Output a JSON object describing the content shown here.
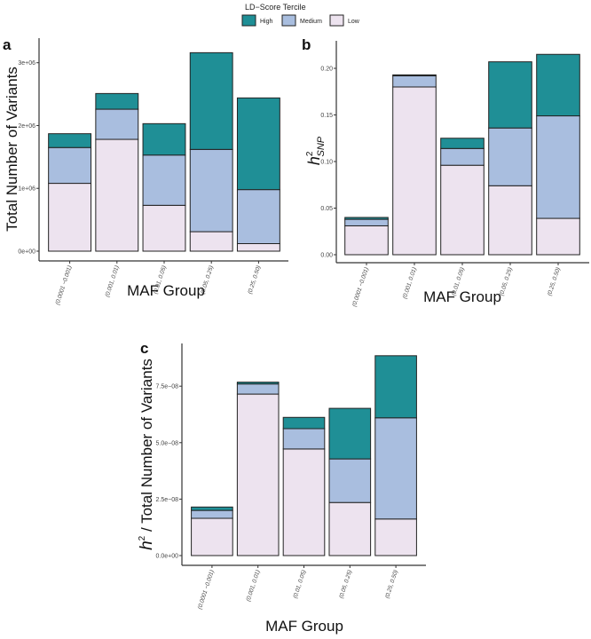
{
  "legend": {
    "title": "LD−Score Tercile",
    "entries": [
      {
        "label": "High",
        "color": "#1f8f96"
      },
      {
        "label": "Medium",
        "color": "#a9bedf"
      },
      {
        "label": "Low",
        "color": "#ede3ef"
      }
    ]
  },
  "chart_data": [
    {
      "panel": "a",
      "type": "bar",
      "stacked": true,
      "title": "",
      "xlabel": "MAF Group",
      "ylabel": "Total Number of Variants",
      "categories": [
        "(0.0001 −0.001)",
        "(0.001, 0.01)",
        "(0.01, 0.05)",
        "(0.05, 0.25)",
        "(0.25, 0.50)"
      ],
      "series": [
        {
          "name": "Low",
          "values": [
            1080000,
            1780000,
            730000,
            310000,
            120000
          ]
        },
        {
          "name": "Medium",
          "values": [
            570000,
            480000,
            800000,
            1310000,
            860000
          ]
        },
        {
          "name": "High",
          "values": [
            220000,
            250000,
            500000,
            1540000,
            1460000
          ]
        }
      ],
      "yticks": [
        0,
        1000000,
        2000000,
        3000000
      ],
      "ytick_labels": [
        "0e+00",
        "1e+06",
        "2e+06",
        "3e+06"
      ],
      "ylim": [
        0,
        3250000
      ]
    },
    {
      "panel": "b",
      "type": "bar",
      "stacked": true,
      "title": "",
      "xlabel": "MAF Group",
      "ylabel": "h2 SNP",
      "ylabel_main": "h",
      "ylabel_sup": "2",
      "ylabel_sub": "SNP",
      "categories": [
        "(0.0001 −0.001)",
        "(0.001, 0.01)",
        "(0.01, 0.05)",
        "(0.05, 0.25)",
        "(0.25, 0.50)"
      ],
      "series": [
        {
          "name": "Low",
          "values": [
            0.031,
            0.18,
            0.096,
            0.074,
            0.039
          ]
        },
        {
          "name": "Medium",
          "values": [
            0.007,
            0.012,
            0.018,
            0.062,
            0.11
          ]
        },
        {
          "name": "High",
          "values": [
            0.002,
            0.001,
            0.011,
            0.071,
            0.066
          ]
        }
      ],
      "yticks": [
        0,
        0.05,
        0.1,
        0.15,
        0.2
      ],
      "ytick_labels": [
        "0.00",
        "0.05",
        "0.10",
        "0.15",
        "0.20"
      ],
      "ylim": [
        0,
        0.22
      ]
    },
    {
      "panel": "c",
      "type": "bar",
      "stacked": true,
      "title": "",
      "xlabel": "MAF Group",
      "ylabel": "h2 / Total Number of Variants",
      "ylabel_main": "h",
      "ylabel_sup": "2",
      "ylabel_rest": " / Total Number of Variants",
      "categories": [
        "(0.0001 −0.001)",
        "(0.001, 0.01)",
        "(0.01, 0.05)",
        "(0.05, 0.25)",
        "(0.25, 0.50)"
      ],
      "series": [
        {
          "name": "Low",
          "values": [
            1.65e-08,
            7.15e-08,
            4.72e-08,
            2.35e-08,
            1.62e-08
          ]
        },
        {
          "name": "Medium",
          "values": [
            3.5e-09,
            4.5e-09,
            9e-09,
            1.93e-08,
            4.48e-08
          ]
        },
        {
          "name": "High",
          "values": [
            1.5e-09,
            8e-10,
            5e-09,
            2.24e-08,
            2.75e-08
          ]
        }
      ],
      "yticks": [
        0,
        2.5e-08,
        5e-08,
        7.5e-08
      ],
      "ytick_labels": [
        "0.0e+00",
        "2.5e−08",
        "5.0e−08",
        "7.5e−08"
      ],
      "ylim": [
        0,
        9e-08
      ]
    }
  ]
}
